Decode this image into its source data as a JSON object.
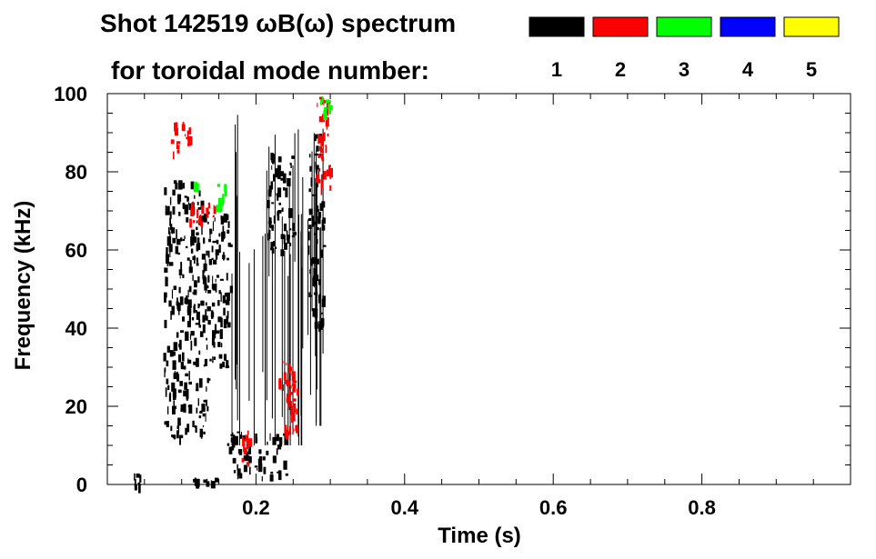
{
  "header": {
    "title": "Shot 142519 ωB(ω) spectrum",
    "subtitle": "for toroidal mode number:"
  },
  "legend": [
    {
      "label": "1",
      "color": "#000000"
    },
    {
      "label": "2",
      "color": "#ff0000"
    },
    {
      "label": "3",
      "color": "#00ff00"
    },
    {
      "label": "4",
      "color": "#0000ff"
    },
    {
      "label": "5",
      "color": "#ffff00"
    }
  ],
  "chart_data": {
    "type": "heatmap",
    "title": "Shot 142519 ωB(ω) spectrum",
    "xlabel": "Time (s)",
    "ylabel": "Frequency (kHz)",
    "xlim": [
      0.0,
      1.0
    ],
    "ylim": [
      0,
      100
    ],
    "xticks": [
      0.2,
      0.4,
      0.6,
      0.8
    ],
    "xtick_labels": [
      "0.2",
      "0.4",
      "0.6",
      "0.8"
    ],
    "yticks": [
      0,
      20,
      40,
      60,
      80,
      100
    ],
    "ytick_labels": [
      "0",
      "20",
      "40",
      "60",
      "80",
      "100"
    ],
    "grid": false,
    "legend_position": "top-right",
    "series": [
      {
        "name": "1",
        "color": "#000000",
        "regions": [
          {
            "t": [
              0.075,
              0.135
            ],
            "f": [
              12,
              78
            ]
          },
          {
            "t": [
              0.135,
              0.165
            ],
            "f": [
              30,
              70
            ]
          },
          {
            "t": [
              0.16,
              0.24
            ],
            "f": [
              2,
              14
            ]
          },
          {
            "t": [
              0.215,
              0.25
            ],
            "f": [
              60,
              85
            ]
          },
          {
            "t": [
              0.27,
              0.29
            ],
            "f": [
              40,
              92
            ]
          },
          {
            "t": [
              0.165,
              0.27
            ],
            "f": [
              10,
              95
            ],
            "streaks": true
          },
          {
            "t": [
              0.115,
              0.145
            ],
            "f": [
              0,
              3
            ]
          },
          {
            "t": [
              0.035,
              0.045
            ],
            "f": [
              0,
              3
            ]
          },
          {
            "t": [
              0.27,
              0.305
            ],
            "f": [
              15,
              100
            ],
            "streaks": true
          }
        ]
      },
      {
        "name": "2",
        "color": "#ff0000",
        "regions": [
          {
            "t": [
              0.235,
              0.255
            ],
            "f": [
              14,
              26
            ]
          },
          {
            "t": [
              0.28,
              0.3
            ],
            "f": [
              76,
              100
            ]
          },
          {
            "t": [
              0.11,
              0.145
            ],
            "f": [
              67,
              73
            ]
          },
          {
            "t": [
              0.085,
              0.11
            ],
            "f": [
              85,
              93
            ]
          },
          {
            "t": [
              0.23,
              0.25
            ],
            "f": [
              20,
              32
            ]
          },
          {
            "t": [
              0.18,
              0.19
            ],
            "f": [
              5,
              14
            ]
          }
        ]
      },
      {
        "name": "3",
        "color": "#00ff00",
        "regions": [
          {
            "t": [
              0.145,
              0.16
            ],
            "f": [
              71,
              77
            ]
          },
          {
            "t": [
              0.285,
              0.3
            ],
            "f": [
              95,
              100
            ]
          },
          {
            "t": [
              0.115,
              0.12
            ],
            "f": [
              75,
              78
            ]
          }
        ]
      }
    ]
  }
}
